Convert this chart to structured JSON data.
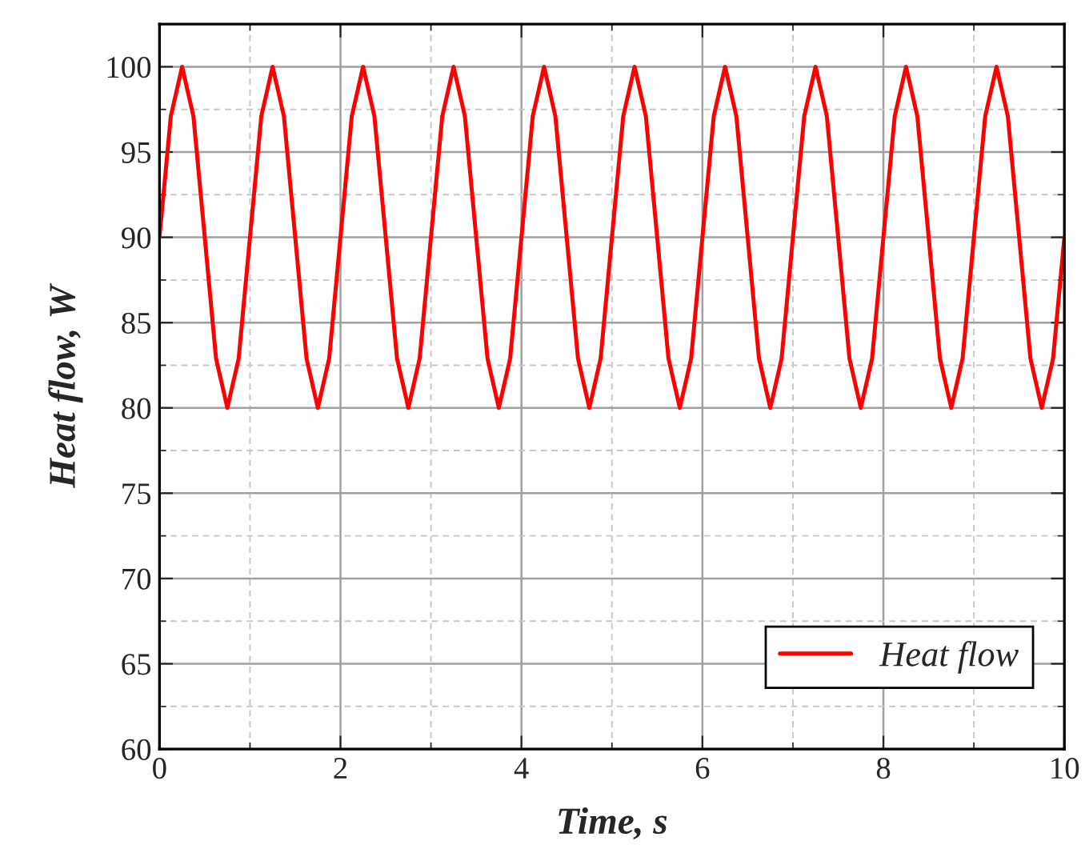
{
  "chart_data": {
    "type": "line",
    "xlabel": "Time, s",
    "ylabel": "Heat flow, W",
    "x": [
      0,
      0.125,
      0.25,
      0.375,
      0.5,
      0.625,
      0.75,
      0.875,
      1,
      1.125,
      1.25,
      1.375,
      1.5,
      1.625,
      1.75,
      1.875,
      2,
      2.125,
      2.25,
      2.375,
      2.5,
      2.625,
      2.75,
      2.875,
      3,
      3.125,
      3.25,
      3.375,
      3.5,
      3.625,
      3.75,
      3.875,
      4,
      4.125,
      4.25,
      4.375,
      4.5,
      4.625,
      4.75,
      4.875,
      5,
      5.125,
      5.25,
      5.375,
      5.5,
      5.625,
      5.75,
      5.875,
      6,
      6.125,
      6.25,
      6.375,
      6.5,
      6.625,
      6.75,
      6.875,
      7,
      7.125,
      7.25,
      7.375,
      7.5,
      7.625,
      7.75,
      7.875,
      8,
      8.125,
      8.25,
      8.375,
      8.5,
      8.625,
      8.75,
      8.875,
      9,
      9.125,
      9.25,
      9.375,
      9.5,
      9.625,
      9.75,
      9.875,
      10
    ],
    "series": [
      {
        "name": "Heat flow",
        "color": "#ff0000",
        "values": [
          90,
          97.1,
          100,
          97.1,
          90,
          82.9,
          80,
          82.9,
          90,
          97.1,
          100,
          97.1,
          90,
          82.9,
          80,
          82.9,
          90,
          97.1,
          100,
          97.1,
          90,
          82.9,
          80,
          82.9,
          90,
          97.1,
          100,
          97.1,
          90,
          82.9,
          80,
          82.9,
          90,
          97.1,
          100,
          97.1,
          90,
          82.9,
          80,
          82.9,
          90,
          97.1,
          100,
          97.1,
          90,
          82.9,
          80,
          82.9,
          90,
          97.1,
          100,
          97.1,
          90,
          82.9,
          80,
          82.9,
          90,
          97.1,
          100,
          97.1,
          90,
          82.9,
          80,
          82.9,
          90,
          97.1,
          100,
          97.1,
          90,
          82.9,
          80,
          82.9,
          90,
          97.1,
          100,
          97.1,
          90,
          82.9,
          80,
          82.9,
          90
        ]
      }
    ],
    "xlim": [
      0,
      10
    ],
    "xticks": [
      0,
      2,
      4,
      6,
      8,
      10
    ],
    "ylim": [
      60,
      102.5
    ],
    "yticks": [
      60,
      65,
      70,
      75,
      80,
      85,
      90,
      95,
      100
    ],
    "grid": true,
    "legend": "bottom right",
    "line_style": "solid",
    "marker": "none"
  }
}
